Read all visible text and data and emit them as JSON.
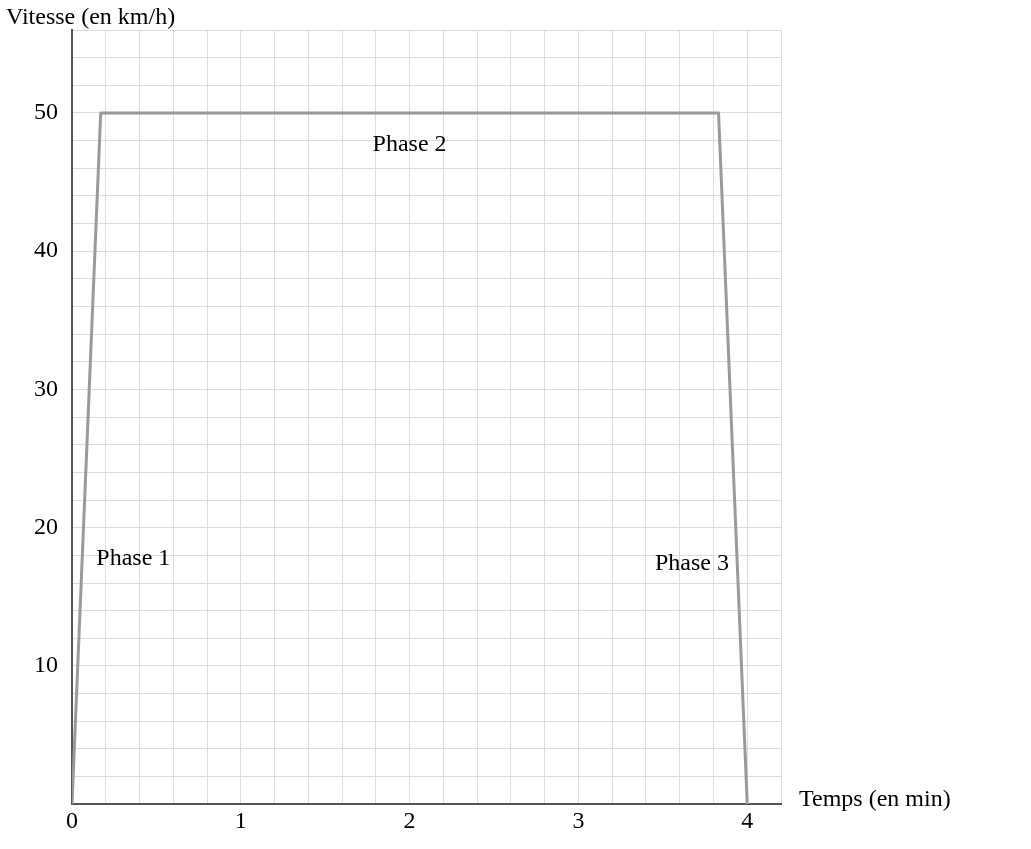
{
  "chart_data": {
    "type": "line",
    "xlabel": "Temps (en min)",
    "ylabel": "Vitesse (en km/h)",
    "x": [
      0,
      0.17,
      3.83,
      4
    ],
    "series": [
      {
        "color": "#9a9a9a",
        "values": [
          0,
          50,
          50,
          0
        ]
      }
    ],
    "xlim": [
      0,
      4.2
    ],
    "xticks": [
      0,
      {
        "value": 0.2,
        "label": null
      },
      {
        "value": 0.4,
        "label": null
      },
      {
        "value": 0.6,
        "label": null
      },
      {
        "value": 0.8,
        "label": null
      },
      1,
      {
        "value": 1.2,
        "label": null
      },
      {
        "value": 1.4,
        "label": null
      },
      {
        "value": 1.6,
        "label": null
      },
      {
        "value": 1.8,
        "label": null
      },
      2,
      {
        "value": 2.2,
        "label": null
      },
      {
        "value": 2.4,
        "label": null
      },
      {
        "value": 2.6,
        "label": null
      },
      {
        "value": 2.8,
        "label": null
      },
      3,
      {
        "value": 3.2,
        "label": null
      },
      {
        "value": 3.4,
        "label": null
      },
      {
        "value": 3.6,
        "label": null
      },
      {
        "value": 3.8,
        "label": null
      },
      4,
      {
        "value": 4.2,
        "label": null
      }
    ],
    "ylim": [
      0,
      56
    ],
    "yticks": [
      {
        "value": 0,
        "label": null
      },
      {
        "value": 2,
        "label": null
      },
      {
        "value": 4,
        "label": null
      },
      {
        "value": 6,
        "label": null
      },
      {
        "value": 8,
        "label": null
      },
      10,
      {
        "value": 12,
        "label": null
      },
      {
        "value": 14,
        "label": null
      },
      {
        "value": 16,
        "label": null
      },
      {
        "value": 18,
        "label": null
      },
      20,
      {
        "value": 22,
        "label": null
      },
      {
        "value": 24,
        "label": null
      },
      {
        "value": 26,
        "label": null
      },
      {
        "value": 28,
        "label": null
      },
      30,
      {
        "value": 32,
        "label": null
      },
      {
        "value": 34,
        "label": null
      },
      {
        "value": 36,
        "label": null
      },
      {
        "value": 38,
        "label": null
      },
      40,
      {
        "value": 42,
        "label": null
      },
      {
        "value": 44,
        "label": null
      },
      {
        "value": 46,
        "label": null
      },
      {
        "value": 48,
        "label": null
      },
      50,
      {
        "value": 52,
        "label": null
      },
      {
        "value": 54,
        "label": null
      },
      {
        "value": 56,
        "label": null
      }
    ],
    "grid": true,
    "legend": false,
    "marker": "none",
    "line_style": "solid",
    "annotations": [
      "Phase 1",
      "Phase 2",
      "Phase 3"
    ]
  }
}
